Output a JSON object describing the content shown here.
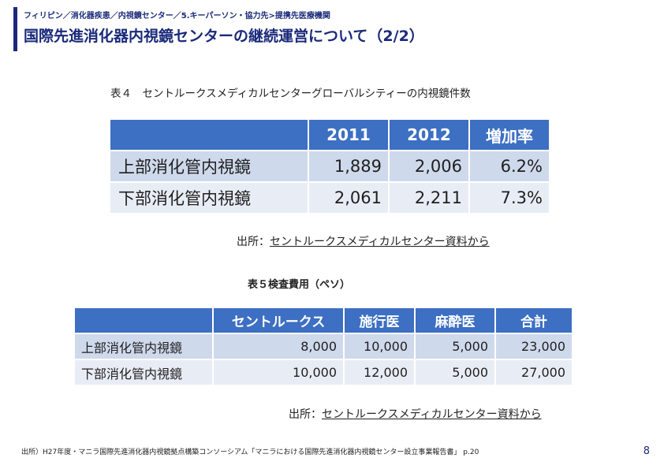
{
  "header": {
    "breadcrumb": "フィリピン／消化器疾患／内視鏡センター／5.キーパーソン・協力先>提携先医療機関",
    "title": "国際先進消化器内視鏡センターの継続運営について（2/2）"
  },
  "table4": {
    "caption": "表４　セントルークスメディカルセンターグローバルシティーの内視鏡件数",
    "headers": [
      "",
      "2011",
      "2012",
      "増加率"
    ],
    "rows": [
      {
        "label": "上部消化管内視鏡",
        "v2011": "1,889",
        "v2012": "2,006",
        "rate": "6.2%"
      },
      {
        "label": "下部消化管内視鏡",
        "v2011": "2,061",
        "v2012": "2,211",
        "rate": "7.3%"
      }
    ],
    "source_prefix": "出所：",
    "source_text": "セントルークスメディカルセンター資料から"
  },
  "table5": {
    "caption": "表５検査費用（ペソ）",
    "headers": [
      "",
      "セントルークス",
      "施行医",
      "麻酔医",
      "合計"
    ],
    "rows": [
      {
        "label": "上部消化管内視鏡",
        "c1": "8,000",
        "c2": "10,000",
        "c3": "5,000",
        "c4": "23,000"
      },
      {
        "label": "下部消化管内視鏡",
        "c1": "10,000",
        "c2": "12,000",
        "c3": "5,000",
        "c4": "27,000"
      }
    ],
    "source_prefix": "出所：",
    "source_text": "セントルークスメディカルセンター資料から"
  },
  "footer": {
    "footnote": "出所）H27年度・マニラ国際先進消化器内視鏡拠点構築コンソーシアム「マニラにおける国際先進消化器内視鏡センター設立事業報告書」 p.20",
    "page_number": "8"
  },
  "colors": {
    "brand": "#1a2a7a",
    "table_header": "#3d6fc3",
    "row_dark": "#cfd9ec",
    "row_light": "#e8edf5"
  }
}
